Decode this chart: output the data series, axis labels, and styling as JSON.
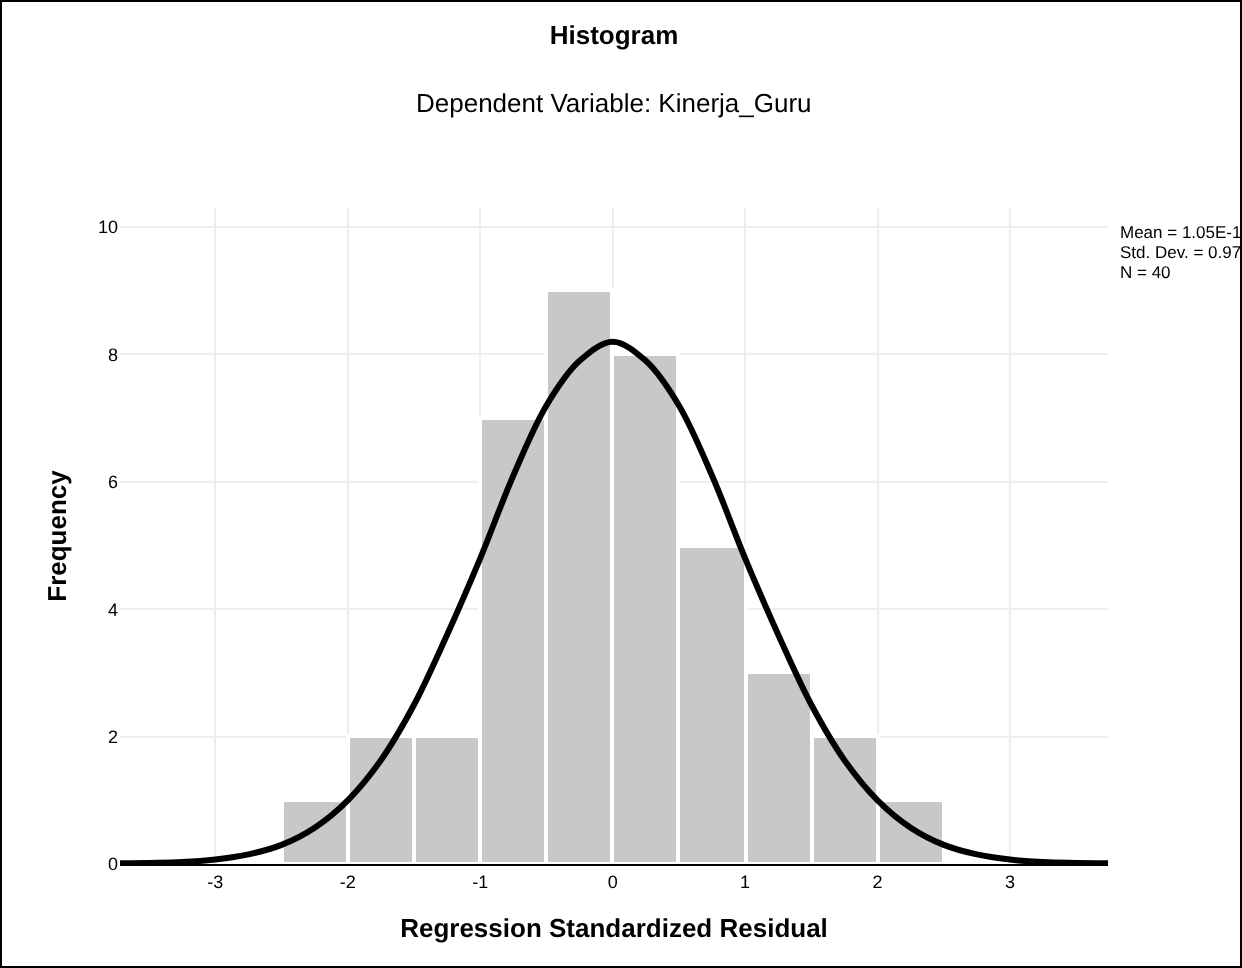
{
  "chart_data": {
    "type": "histogram",
    "title": "Histogram",
    "subtitle": "Dependent Variable: Kinerja_Guru",
    "xlabel": "Regression Standardized Residual",
    "ylabel": "Frequency",
    "bins": [
      -2.5,
      -2,
      -1.5,
      -1,
      -0.5,
      0,
      0.5,
      1,
      1.5,
      2,
      2.5
    ],
    "values": [
      1,
      2,
      2,
      7,
      9,
      8,
      5,
      3,
      2,
      1
    ],
    "color": "#c8c8c8",
    "series": [
      {
        "type": "line",
        "color": "#000000",
        "x": [
          -3.72,
          -3.25,
          -3,
          -2.75,
          -2.5,
          -2.25,
          -2,
          -1.75,
          -1.5,
          -1.25,
          -1,
          -0.75,
          -0.5,
          -0.25,
          0,
          0.25,
          0.5,
          0.75,
          1,
          1.25,
          1.5,
          1.75,
          2,
          2.25,
          2.5,
          2.75,
          3,
          3.25,
          3.74
        ],
        "values": [
          0.01,
          0.03,
          0.07,
          0.15,
          0.3,
          0.57,
          1,
          1.63,
          2.5,
          3.6,
          4.8,
          6.1,
          7.2,
          7.9,
          8.2,
          7.9,
          7.2,
          6.1,
          4.8,
          3.6,
          2.5,
          1.63,
          1,
          0.57,
          0.3,
          0.15,
          0.07,
          0.03,
          0.01
        ]
      }
    ],
    "xlim": [
      -3.72,
      3.74
    ],
    "xticks": [
      -3,
      -2,
      -1,
      0,
      1,
      2,
      3
    ],
    "ylim": [
      0,
      10.3
    ],
    "yticks": [
      0,
      2,
      4,
      6,
      8,
      10
    ],
    "grid": true,
    "annotations": [
      "Mean = 1.05E-1",
      "Std. Dev. = 0.97",
      "N = 40"
    ]
  }
}
